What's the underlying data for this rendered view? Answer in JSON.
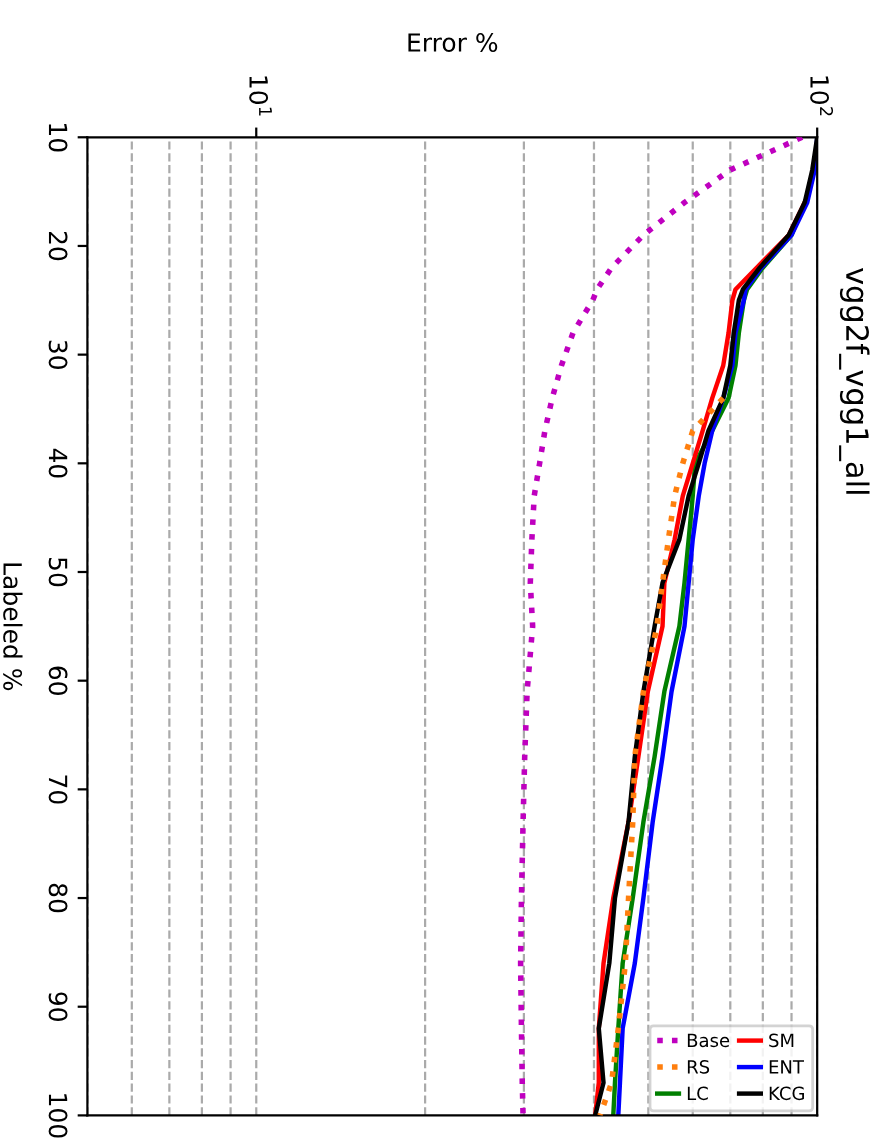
{
  "chart_data": {
    "type": "line",
    "title": "vgg2f_vgg1_all",
    "xlabel": "Error %",
    "ylabel": "Labeled %",
    "series": [
      {
        "name": "Base",
        "color": "#bf00bf",
        "line_style": "dotted",
        "x": [
          94,
          70,
          58,
          49,
          43,
          40.5,
          39.8,
          36.7,
          35,
          33.7,
          32.7,
          32,
          31.3,
          31,
          30.8,
          31.1,
          30.4,
          30.1,
          29.9,
          29.7,
          29.6,
          29.7,
          29.8,
          29.9
        ],
        "values": [
          10,
          13,
          16,
          19,
          22,
          24,
          25,
          28,
          31,
          34,
          37,
          40,
          43,
          47,
          51,
          55,
          61,
          67,
          73,
          80,
          86,
          92,
          97,
          100
        ]
      },
      {
        "name": "RS",
        "color": "#ff7f0e",
        "line_style": "dotted",
        "x": [
          68,
          60,
          57.6,
          55.7,
          54.3,
          53,
          51.8,
          49,
          47.3,
          46.9,
          46.1,
          45.5,
          44.2,
          43,
          41
        ],
        "values": [
          34,
          37,
          40,
          43,
          47,
          51,
          55,
          61,
          67,
          73,
          80,
          86,
          92,
          97,
          100
        ]
      },
      {
        "name": "LC",
        "color": "#008000",
        "line_style": "solid",
        "x": [
          95,
          90,
          80,
          75,
          74,
          72.5,
          71.5,
          69.5,
          65,
          60.6,
          60,
          59,
          58,
          56.8,
          53.4,
          51.3,
          49,
          46.9,
          45,
          44.2,
          43.6,
          43.3
        ],
        "values": [
          16,
          19,
          22,
          24,
          25,
          28,
          31,
          34,
          37,
          40,
          43,
          47,
          51,
          55,
          61,
          67,
          73,
          80,
          86,
          92,
          97,
          100
        ]
      },
      {
        "name": "SM",
        "color": "#ff0000",
        "line_style": "solid",
        "x": [
          95,
          89,
          78,
          71.5,
          70.6,
          69.5,
          68,
          65,
          62.5,
          60,
          57.6,
          55.7,
          53.4,
          53,
          49.9,
          48,
          46.1,
          43.3,
          41.6,
          40.8,
          40.8,
          40.2
        ],
        "values": [
          16,
          19,
          22,
          24,
          25,
          28,
          31,
          34,
          37,
          40,
          43,
          47,
          51,
          55,
          61,
          67,
          73,
          80,
          86,
          92,
          97,
          100
        ]
      },
      {
        "name": "ENT",
        "color": "#0000ff",
        "line_style": "solid",
        "x": [
          100,
          99,
          96,
          90,
          79.5,
          74.5,
          74,
          71.5,
          70.6,
          68,
          65,
          63,
          61.5,
          60,
          59,
          58,
          55,
          53,
          50.9,
          49,
          47.3,
          45,
          44.5,
          44.2
        ],
        "values": [
          10,
          13,
          16,
          19,
          22,
          24,
          25,
          28,
          31,
          34,
          37,
          40,
          43,
          47,
          51,
          55,
          61,
          67,
          73,
          80,
          86,
          92,
          97,
          100
        ]
      },
      {
        "name": "KCG",
        "color": "#000000",
        "line_style": "solid",
        "x": [
          100,
          98,
          95,
          89,
          79,
          73.7,
          72.5,
          71,
          70,
          68,
          64,
          61.5,
          59,
          56.8,
          53,
          51.3,
          49,
          47.3,
          46.1,
          43.6,
          42.6,
          40.8,
          41.6,
          40.2
        ],
        "values": [
          10,
          13,
          16,
          19,
          22,
          24,
          25,
          28,
          31,
          34,
          37,
          40,
          43,
          47,
          51,
          55,
          61,
          67,
          73,
          80,
          86,
          92,
          97,
          100
        ]
      }
    ],
    "ylim": [
      100,
      10
    ],
    "yticks": [
      10,
      20,
      30,
      40,
      50,
      60,
      70,
      80,
      90,
      100
    ],
    "log": "x",
    "xlim": [
      5,
      100
    ],
    "xticks": [
      {
        "value": 5,
        "label": null
      },
      {
        "value": 6,
        "label": null
      },
      {
        "value": 7,
        "label": null
      },
      {
        "value": 8,
        "label": null
      },
      {
        "value": 9,
        "label": null
      },
      {
        "value": 10,
        "label": "10$^{1}$"
      },
      {
        "value": 20,
        "label": null
      },
      {
        "value": 30,
        "label": null
      },
      {
        "value": 40,
        "label": null
      },
      {
        "value": 50,
        "label": null
      },
      {
        "value": 60,
        "label": null
      },
      {
        "value": 70,
        "label": null
      },
      {
        "value": 80,
        "label": null
      },
      {
        "value": 90,
        "label": null
      },
      {
        "value": 100,
        "label": "10$^{2}$"
      }
    ],
    "grid": "x",
    "legend": "bottom right"
  }
}
